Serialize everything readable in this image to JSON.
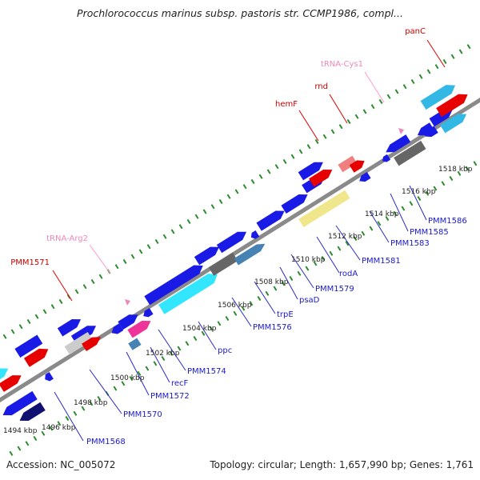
{
  "title": "Prochlorococcus marinus subsp. pastoris str. CCMP1986, compl...",
  "footer": {
    "accession": "Accession: NC_005072",
    "topology": "Topology: circular; Length: 1,657,990 bp; Genes: 1,761"
  },
  "colors": {
    "backbone": "#8a8a8a",
    "tick": "#2e8b2e",
    "blue": "#1a1ae6",
    "red": "#e60000",
    "cyan": "#33e6ff",
    "skyblue": "#33b8e6",
    "lightgray": "#cccccc",
    "darkgray": "#666666",
    "pink": "#ee3399",
    "salmon": "#f08080",
    "steel": "#4682b4",
    "khaki": "#f0e68c",
    "navy": "#101070",
    "label_blue": "#1a1acc",
    "label_red": "#cc0000",
    "label_pink": "#ee88bb",
    "leader_blue": "#2a2acc",
    "leader_red": "#dd0000",
    "leader_pink": "#ff99cc"
  },
  "scale": {
    "labels": [
      {
        "kbp": 1494,
        "text": "1494 kbp"
      },
      {
        "kbp": 1496,
        "text": "1496 kbp"
      },
      {
        "kbp": 1498,
        "text": "1498 kbp"
      },
      {
        "kbp": 1500,
        "text": "1500 kbp"
      },
      {
        "kbp": 1502,
        "text": "1502 kbp"
      },
      {
        "kbp": 1504,
        "text": "1504 kbp"
      },
      {
        "kbp": 1506,
        "text": "1506 kbp"
      },
      {
        "kbp": 1508,
        "text": "1508 kbp"
      },
      {
        "kbp": 1510,
        "text": "1510 kbp"
      },
      {
        "kbp": 1512,
        "text": "1512 kbp"
      },
      {
        "kbp": 1514,
        "text": "1514 kbp"
      },
      {
        "kbp": 1516,
        "text": "1516 kbp"
      },
      {
        "kbp": 1518,
        "text": "1518 kbp"
      }
    ]
  },
  "labels": [
    {
      "text": "PMM1568",
      "color": "label_blue"
    },
    {
      "text": "PMM1570",
      "color": "label_blue"
    },
    {
      "text": "PMM1572",
      "color": "label_blue"
    },
    {
      "text": "recF",
      "color": "label_blue"
    },
    {
      "text": "PMM1574",
      "color": "label_blue"
    },
    {
      "text": "ppc",
      "color": "label_blue"
    },
    {
      "text": "PMM1576",
      "color": "label_blue"
    },
    {
      "text": "trpE",
      "color": "label_blue"
    },
    {
      "text": "psaD",
      "color": "label_blue"
    },
    {
      "text": "PMM1579",
      "color": "label_blue"
    },
    {
      "text": "rodA",
      "color": "label_blue"
    },
    {
      "text": "PMM1581",
      "color": "label_blue"
    },
    {
      "text": "PMM1583",
      "color": "label_blue"
    },
    {
      "text": "PMM1585",
      "color": "label_blue"
    },
    {
      "text": "PMM1586",
      "color": "label_blue"
    },
    {
      "text": "PMM1571",
      "color": "label_red"
    },
    {
      "text": "tRNA-Arg2",
      "color": "label_pink"
    },
    {
      "text": "hemF",
      "color": "label_red"
    },
    {
      "text": "rnd",
      "color": "label_red"
    },
    {
      "text": "tRNA-Cys1",
      "color": "label_pink"
    },
    {
      "text": "panC",
      "color": "label_red"
    }
  ]
}
